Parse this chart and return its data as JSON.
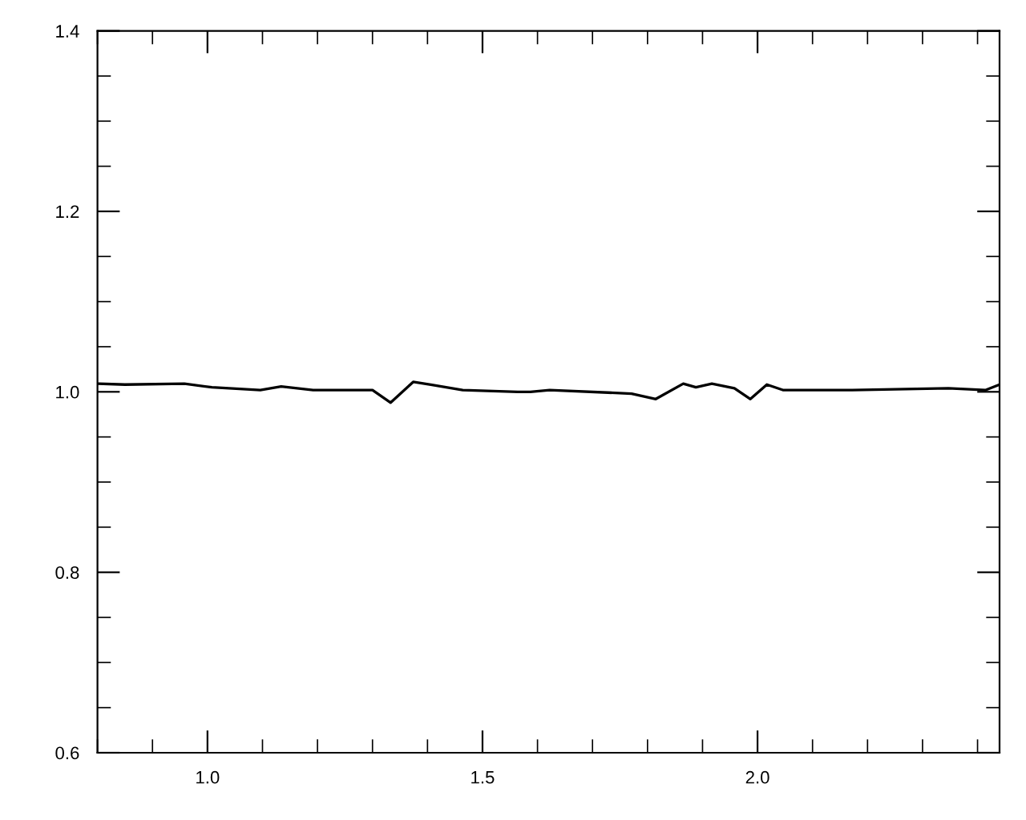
{
  "chart_data": {
    "type": "line",
    "x": [
      0.803,
      0.85,
      0.958,
      1.008,
      1.096,
      1.134,
      1.192,
      1.3,
      1.333,
      1.374,
      1.406,
      1.464,
      1.564,
      1.587,
      1.622,
      1.771,
      1.815,
      1.865,
      1.888,
      1.917,
      1.958,
      1.987,
      2.017,
      2.046,
      2.172,
      2.347,
      2.415,
      2.44
    ],
    "series": [
      {
        "color": "#000000",
        "values": [
          1.009,
          1.008,
          1.009,
          1.005,
          1.002,
          1.006,
          1.002,
          1.002,
          0.988,
          1.011,
          1.008,
          1.002,
          1.0,
          1.0,
          1.002,
          0.998,
          0.992,
          1.009,
          1.005,
          1.009,
          1.004,
          0.992,
          1.008,
          1.002,
          1.002,
          1.004,
          1.002,
          1.008
        ]
      }
    ],
    "xlim": [
      0.8,
      2.44
    ],
    "ylim": [
      0.6,
      1.4
    ],
    "xticks": [
      {
        "value": 1,
        "label": "1.0"
      },
      {
        "value": 1.5,
        "label": "1.5"
      },
      {
        "value": 2,
        "label": "2.0"
      }
    ],
    "yticks": [
      {
        "value": 0.6,
        "label": "0.6"
      },
      {
        "value": 0.8,
        "label": "0.8"
      },
      {
        "value": 1,
        "label": "1.0"
      },
      {
        "value": 1.2,
        "label": "1.2"
      },
      {
        "value": 1.4,
        "label": "1.4"
      }
    ],
    "grid": false,
    "legend": false,
    "marker": "none",
    "line_style": "solid"
  }
}
